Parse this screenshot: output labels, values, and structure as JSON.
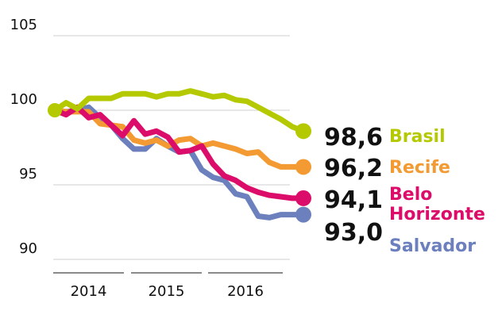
{
  "chart_data": {
    "type": "line",
    "ylim": [
      90,
      105
    ],
    "yticks": [
      "90",
      "95",
      "100",
      "105"
    ],
    "year_labels": [
      "2014",
      "2015",
      "2016"
    ],
    "grid": true,
    "legend": "right",
    "series": [
      {
        "name": "Brasil",
        "label": "98,6",
        "color": "#b5c900",
        "values": [
          100.0,
          100.5,
          100.1,
          100.8,
          100.8,
          100.8,
          101.1,
          101.1,
          101.1,
          100.9,
          101.1,
          101.1,
          101.3,
          101.1,
          100.9,
          101.0,
          100.7,
          100.6,
          100.2,
          99.8,
          99.4,
          98.9,
          98.6
        ]
      },
      {
        "name": "Recife",
        "label": "96,2",
        "color": "#f39a33",
        "values": [
          100.0,
          99.9,
          99.9,
          99.9,
          99.1,
          99.0,
          98.9,
          98.0,
          97.8,
          98.0,
          97.6,
          98.0,
          98.1,
          97.6,
          97.8,
          97.6,
          97.4,
          97.1,
          97.2,
          96.5,
          96.2,
          96.2,
          96.2
        ]
      },
      {
        "name": "Belo Horizonte",
        "label": "94,1",
        "color": "#dc0d6a",
        "values": [
          100.0,
          99.7,
          100.2,
          99.5,
          99.7,
          99.0,
          98.3,
          99.3,
          98.4,
          98.6,
          98.2,
          97.2,
          97.3,
          97.6,
          96.4,
          95.6,
          95.3,
          94.8,
          94.5,
          94.3,
          94.2,
          94.1,
          94.1
        ]
      },
      {
        "name": "Salvador",
        "label": "93,0",
        "color": "#6d80be",
        "values": [
          100.0,
          99.9,
          100.0,
          100.2,
          99.5,
          99.0,
          98.1,
          97.4,
          97.4,
          98.1,
          97.6,
          97.2,
          97.3,
          96.0,
          95.5,
          95.3,
          94.4,
          94.2,
          92.9,
          92.8,
          93.0,
          93.0,
          93.0
        ]
      }
    ]
  }
}
